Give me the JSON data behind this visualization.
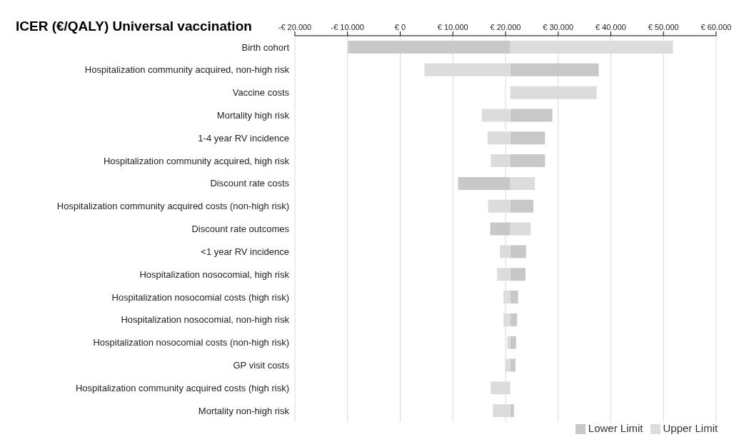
{
  "chart_data": {
    "type": "bar",
    "orientation": "horizontal",
    "title": "ICER (€/QALY) Universal vaccination",
    "categories": [
      "Birth cohort",
      "Hospitalization community acquired, non-high risk",
      "Vaccine costs",
      "Mortality high risk",
      "1-4 year RV incidence",
      "Hospitalization community acquired, high risk",
      "Discount rate costs",
      "Hospitalization community acquired costs (non-high risk)",
      "Discount rate outcomes",
      "<1 year RV incidence",
      "Hospitalization nosocomial, high risk",
      "Hospitalization nosocomial costs (high risk)",
      "Hospitalization nosocomial, non-high risk",
      "Hospitalization nosocomial costs (non-high risk)",
      "GP visit costs",
      "Hospitalization community acquired costs (high risk)",
      "Mortality non-high risk"
    ],
    "series": [
      {
        "name": "Lower Limit",
        "color": "#c8c8c8",
        "base": [
          20900,
          20900,
          null,
          20900,
          20900,
          20900,
          20900,
          20900,
          20900,
          20900,
          20900,
          20900,
          20900,
          20900,
          20900,
          null,
          20900
        ],
        "values": [
          -30800,
          16800,
          null,
          8000,
          6600,
          6600,
          -9900,
          4400,
          -3800,
          3000,
          2900,
          1500,
          1300,
          1100,
          1000,
          null,
          700
        ]
      },
      {
        "name": "Upper Limit",
        "color": "#dcdcdc",
        "base": [
          20900,
          20900,
          20900,
          20900,
          20900,
          20900,
          20900,
          20900,
          20900,
          20900,
          20900,
          20900,
          20900,
          20900,
          20900,
          20900,
          20900
        ],
        "values": [
          30900,
          -16300,
          16400,
          -5400,
          -4300,
          -3700,
          4700,
          -4200,
          3900,
          -2000,
          -2500,
          -1300,
          -1300,
          -600,
          -900,
          -3700,
          -3300
        ]
      }
    ],
    "xlim": [
      -20000,
      60000
    ],
    "xticks": [
      {
        "value": -20000,
        "label": "-€ 20.000"
      },
      {
        "value": -10000,
        "label": "-€ 10.000"
      },
      {
        "value": 0,
        "label": "€ 0"
      },
      {
        "value": 10000,
        "label": "€ 10.000"
      },
      {
        "value": 20000,
        "label": "€ 20.000"
      },
      {
        "value": 30000,
        "label": "€ 30.000"
      },
      {
        "value": 40000,
        "label": "€ 40.000"
      },
      {
        "value": 50000,
        "label": "€ 50.000"
      },
      {
        "value": 60000,
        "label": "€ 60.000"
      }
    ],
    "grid": "x",
    "legend": "bottom"
  }
}
